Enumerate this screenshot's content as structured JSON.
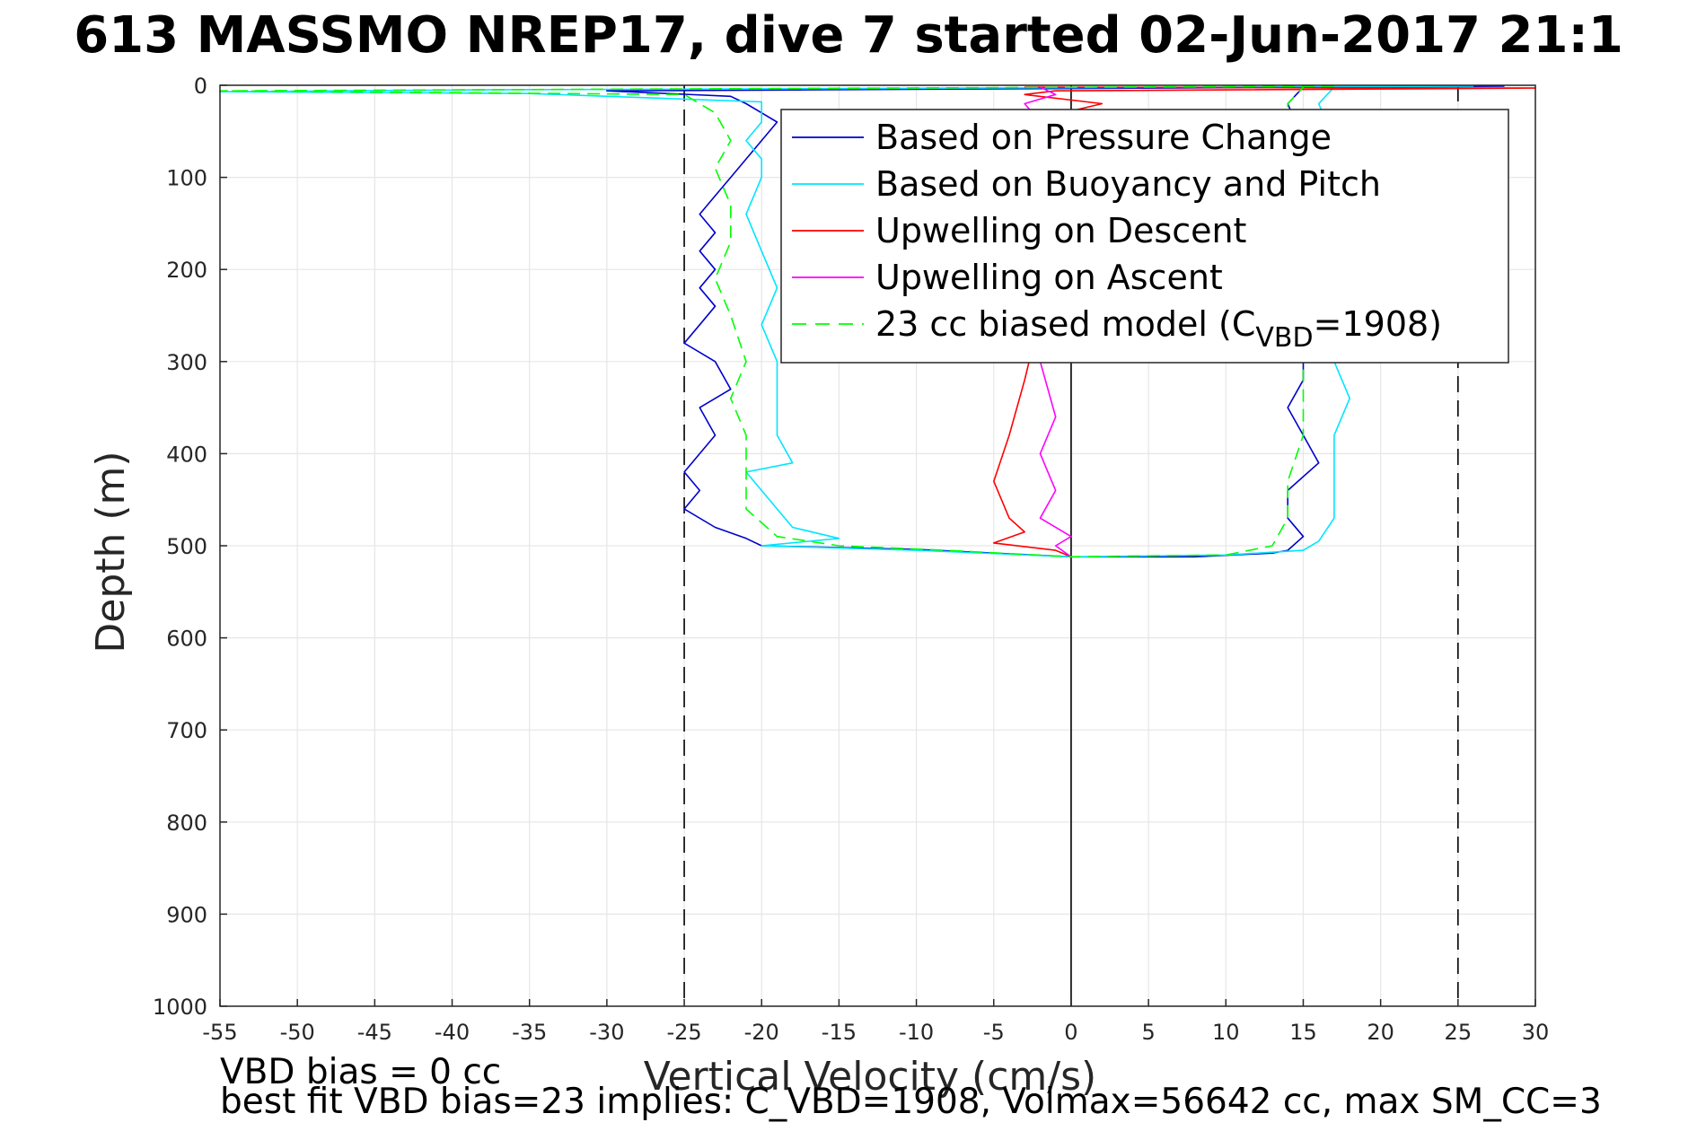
{
  "chart_data": {
    "type": "line",
    "title": "613 MASSMO NREP17, dive 7 started 02-Jun-2017 21:1",
    "xlabel": "Vertical Velocity (cm/s)",
    "ylabel": "Depth (m)",
    "xlim": [
      -55,
      30
    ],
    "ylim": [
      0,
      1000
    ],
    "y_reversed": true,
    "grid": true,
    "xticks": [
      "-55",
      "-50",
      "-45",
      "-40",
      "-35",
      "-30",
      "-25",
      "-20",
      "-15",
      "-10",
      "-5",
      "0",
      "5",
      "10",
      "15",
      "20",
      "25",
      "30"
    ],
    "yticks": [
      "0",
      "100",
      "200",
      "300",
      "400",
      "500",
      "600",
      "700",
      "800",
      "900",
      "1000"
    ],
    "legend_position": "top-right",
    "reference_lines": [
      {
        "x": -25,
        "style": "dashed",
        "color": "#000000"
      },
      {
        "x": 0,
        "style": "solid",
        "color": "#000000"
      },
      {
        "x": 25,
        "style": "dashed",
        "color": "#000000"
      }
    ],
    "series": [
      {
        "name": "Based on Pressure Change",
        "color": "#0000cc",
        "style": "solid",
        "points": [
          [
            28,
            1
          ],
          [
            -17,
            5
          ],
          [
            -30,
            6
          ],
          [
            -22,
            12
          ],
          [
            -21,
            20
          ],
          [
            -19,
            40
          ],
          [
            -20,
            60
          ],
          [
            -21,
            80
          ],
          [
            -22,
            100
          ],
          [
            -23,
            120
          ],
          [
            -24,
            140
          ],
          [
            -23,
            160
          ],
          [
            -24,
            180
          ],
          [
            -23,
            200
          ],
          [
            -24,
            220
          ],
          [
            -23,
            240
          ],
          [
            -24,
            260
          ],
          [
            -25,
            280
          ],
          [
            -23,
            300
          ],
          [
            -22,
            330
          ],
          [
            -24,
            350
          ],
          [
            -23,
            380
          ],
          [
            -24,
            400
          ],
          [
            -25,
            420
          ],
          [
            -24,
            440
          ],
          [
            -25,
            460
          ],
          [
            -23,
            480
          ],
          [
            -21,
            492
          ],
          [
            -20,
            500
          ],
          [
            -10,
            504
          ],
          [
            -5,
            508
          ],
          [
            0,
            512
          ],
          [
            8,
            512
          ],
          [
            13,
            508
          ],
          [
            14,
            505
          ],
          [
            15,
            490
          ],
          [
            14,
            470
          ],
          [
            14,
            440
          ],
          [
            16,
            410
          ],
          [
            15,
            380
          ],
          [
            14,
            350
          ],
          [
            15,
            320
          ],
          [
            15,
            250
          ],
          [
            15,
            200
          ],
          [
            15,
            100
          ],
          [
            15,
            60
          ],
          [
            14,
            20
          ],
          [
            15,
            2
          ]
        ]
      },
      {
        "name": "Based on Buoyancy and Pitch",
        "color": "#00e5ff",
        "style": "solid",
        "points": [
          [
            26,
            1
          ],
          [
            -38,
            5
          ],
          [
            -55,
            7
          ],
          [
            -35,
            9
          ],
          [
            -20,
            18
          ],
          [
            -20,
            40
          ],
          [
            -21,
            60
          ],
          [
            -20,
            80
          ],
          [
            -20,
            100
          ],
          [
            -21,
            140
          ],
          [
            -20,
            180
          ],
          [
            -19,
            220
          ],
          [
            -20,
            260
          ],
          [
            -19,
            300
          ],
          [
            -19,
            340
          ],
          [
            -19,
            380
          ],
          [
            -18,
            410
          ],
          [
            -21,
            420
          ],
          [
            -20,
            440
          ],
          [
            -19,
            460
          ],
          [
            -18,
            480
          ],
          [
            -15,
            492
          ],
          [
            -20,
            500
          ],
          [
            -10,
            505
          ],
          [
            0,
            512
          ],
          [
            10,
            510
          ],
          [
            15,
            505
          ],
          [
            16,
            495
          ],
          [
            17,
            470
          ],
          [
            17,
            420
          ],
          [
            17,
            380
          ],
          [
            18,
            340
          ],
          [
            17,
            300
          ],
          [
            17,
            150
          ],
          [
            17,
            60
          ],
          [
            16,
            20
          ],
          [
            17,
            2
          ]
        ]
      },
      {
        "name": "Upwelling on Descent",
        "color": "#ff0000",
        "style": "solid",
        "points": [
          [
            -3,
            2
          ],
          [
            30,
            3
          ],
          [
            -1,
            6
          ],
          [
            -3,
            10
          ],
          [
            2,
            20
          ],
          [
            -3,
            40
          ],
          [
            -2,
            80
          ],
          [
            -3,
            150
          ],
          [
            -2,
            250
          ],
          [
            -3,
            320
          ],
          [
            -4,
            380
          ],
          [
            -5,
            430
          ],
          [
            -4,
            470
          ],
          [
            -3,
            485
          ],
          [
            -5,
            497
          ],
          [
            -1,
            505
          ],
          [
            0,
            512
          ]
        ]
      },
      {
        "name": "Upwelling on Ascent",
        "color": "#ff00ff",
        "style": "solid",
        "points": [
          [
            -2,
            2
          ],
          [
            -1,
            10
          ],
          [
            -3,
            20
          ],
          [
            -2,
            40
          ],
          [
            -2,
            100
          ],
          [
            -1,
            200
          ],
          [
            -2,
            300
          ],
          [
            -1,
            360
          ],
          [
            -2,
            400
          ],
          [
            -1,
            440
          ],
          [
            -2,
            470
          ],
          [
            0,
            490
          ],
          [
            -1,
            500
          ],
          [
            0,
            512
          ]
        ]
      },
      {
        "name": "23 cc biased model (C_VBD=1908)",
        "color": "#00ff00",
        "style": "dashed",
        "points": [
          [
            17,
            1
          ],
          [
            -55,
            6
          ],
          [
            -25,
            10
          ],
          [
            -23,
            30
          ],
          [
            -22,
            60
          ],
          [
            -23,
            90
          ],
          [
            -22,
            130
          ],
          [
            -22,
            170
          ],
          [
            -23,
            210
          ],
          [
            -22,
            250
          ],
          [
            -21,
            300
          ],
          [
            -22,
            340
          ],
          [
            -21,
            380
          ],
          [
            -21,
            420
          ],
          [
            -21,
            460
          ],
          [
            -19,
            490
          ],
          [
            -15,
            500
          ],
          [
            -8,
            505
          ],
          [
            0,
            512
          ],
          [
            10,
            510
          ],
          [
            13,
            500
          ],
          [
            14,
            470
          ],
          [
            14,
            430
          ],
          [
            15,
            380
          ],
          [
            15,
            340
          ],
          [
            15,
            150
          ],
          [
            14,
            60
          ],
          [
            14,
            20
          ],
          [
            15,
            2
          ]
        ]
      }
    ],
    "legend_entries": [
      {
        "text": "Based on Pressure Change"
      },
      {
        "text": "Based on Buoyancy and Pitch"
      },
      {
        "text": "Upwelling on Descent"
      },
      {
        "text": "Upwelling on Ascent"
      },
      {
        "text": "23 cc biased model (C",
        "sub": "VBD",
        "suffix": "=1908)"
      }
    ],
    "annotations": [
      "VBD bias = 0 cc",
      "best fit VBD bias=23 implies: C_VBD=1908, Volmax=56642 cc, max SM_CC=3"
    ]
  },
  "colors": {
    "grid": "#e6e6e6",
    "axis": "#262626",
    "background": "#ffffff"
  }
}
